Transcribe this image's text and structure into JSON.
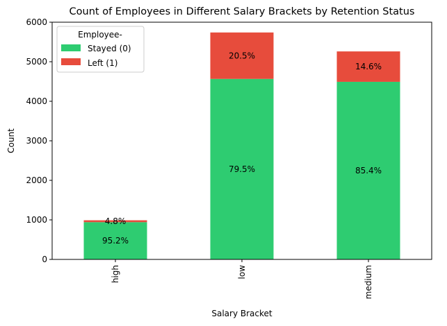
{
  "chart_data": {
    "type": "bar",
    "stacked": true,
    "title": "Count of Employees in Different Salary Brackets by Retention Status",
    "xlabel": "Salary Bracket",
    "ylabel": "Count",
    "categories": [
      "high",
      "low",
      "medium"
    ],
    "ylim": [
      0,
      6000
    ],
    "yticks": [
      0,
      1000,
      2000,
      3000,
      4000,
      5000,
      6000
    ],
    "series": [
      {
        "name": "Stayed (0)",
        "color": "#2ecc71",
        "values": [
          942,
          4566,
          4492
        ],
        "labels": [
          "95.2%",
          "79.5%",
          "85.4%"
        ]
      },
      {
        "name": "Left (1)",
        "color": "#e74c3c",
        "values": [
          48,
          1174,
          769
        ],
        "labels": [
          "4.8%",
          "20.5%",
          "14.6%"
        ]
      }
    ],
    "legend": {
      "title": "Employee-",
      "position": "top-left"
    },
    "grid": false
  }
}
